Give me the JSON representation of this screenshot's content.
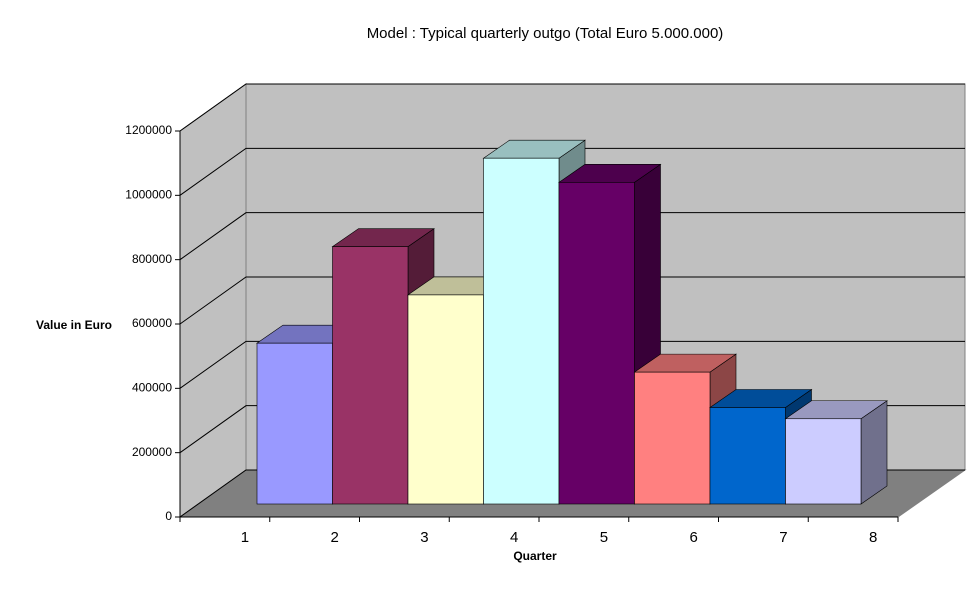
{
  "chart_data": {
    "type": "bar3d",
    "title": "Model : Typical quarterly outgo   (Total Euro 5.000.000)",
    "x_label": "Quarter",
    "y_label": "Value in Euro",
    "categories": [
      "1",
      "2",
      "3",
      "4",
      "5",
      "6",
      "7",
      "8"
    ],
    "values": [
      500000,
      800000,
      650000,
      1075000,
      1000000,
      410000,
      300000,
      265000
    ],
    "colors": [
      "#9999ff",
      "#993366",
      "#ffffcc",
      "#ccffff",
      "#660066",
      "#ff8080",
      "#0066cc",
      "#ccccff"
    ],
    "ylim": [
      0,
      1200000
    ],
    "yticks": [
      0,
      200000,
      400000,
      600000,
      800000,
      1000000,
      1200000
    ],
    "grid": true
  }
}
